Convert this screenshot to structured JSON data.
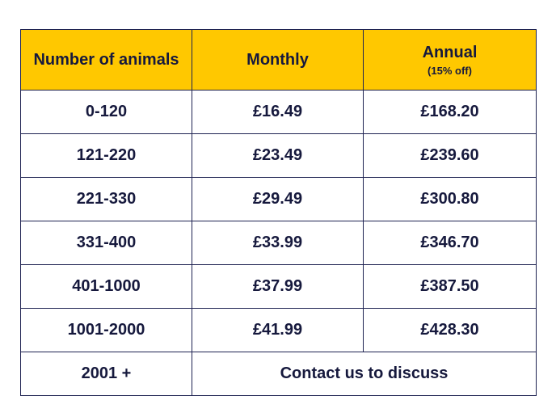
{
  "header": {
    "col1": "Number of animals",
    "col2": "Monthly",
    "col3": "Annual",
    "col3_sub": "(15% off)"
  },
  "rows": [
    {
      "range": "0-120",
      "monthly": "£16.49",
      "annual": "£168.20"
    },
    {
      "range": "121-220",
      "monthly": "£23.49",
      "annual": "£239.60"
    },
    {
      "range": "221-330",
      "monthly": "£29.49",
      "annual": "£300.80"
    },
    {
      "range": "331-400",
      "monthly": "£33.99",
      "annual": "£346.70"
    },
    {
      "range": "401-1000",
      "monthly": "£37.99",
      "annual": "£387.50"
    },
    {
      "range": "1001-2000",
      "monthly": "£41.99",
      "annual": "£428.30"
    }
  ],
  "last_row": {
    "range": "2001 +",
    "contact": "Contact us to discuss"
  },
  "colors": {
    "header_bg": "#ffc800",
    "border": "#1f2352",
    "text": "#16193d"
  }
}
